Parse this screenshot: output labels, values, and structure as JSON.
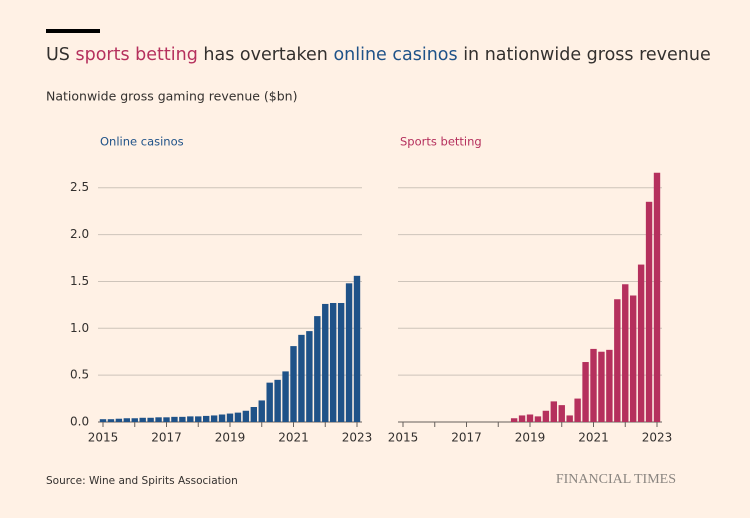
{
  "header": {
    "title_parts": [
      {
        "text": "US "
      },
      {
        "text": "sports betting",
        "color": "#b5305d"
      },
      {
        "text": " has overtaken "
      },
      {
        "text": "online casinos",
        "color": "#1f5288"
      },
      {
        "text": " in nationwide gross revenue"
      }
    ],
    "subtitle": "Nationwide gross gaming revenue ($bn)"
  },
  "footer": {
    "source": "Source: Wine and Spirits Association",
    "brand": "FINANCIAL TIMES"
  },
  "chart_data": [
    {
      "type": "bar",
      "title": "Online casinos",
      "color": "#1f5288",
      "categories": [
        "2015",
        null,
        null,
        null,
        null,
        null,
        null,
        null,
        "2017",
        null,
        null,
        null,
        null,
        null,
        null,
        null,
        "2019",
        null,
        null,
        null,
        null,
        null,
        null,
        null,
        "2021",
        null,
        null,
        null,
        null,
        null,
        null,
        null,
        "2023"
      ],
      "values": [
        0.03,
        0.03,
        0.035,
        0.04,
        0.04,
        0.045,
        0.045,
        0.05,
        0.05,
        0.055,
        0.055,
        0.06,
        0.06,
        0.065,
        0.07,
        0.08,
        0.09,
        0.1,
        0.12,
        0.16,
        0.23,
        0.42,
        0.45,
        0.54,
        0.81,
        0.93,
        0.97,
        1.13,
        1.26,
        1.27,
        1.27,
        1.48,
        1.56
      ],
      "ylim": [
        0,
        2.7
      ],
      "yticks": [
        {
          "value": 0,
          "label": "0.0"
        },
        0.5,
        {
          "value": 1,
          "label": "1.0"
        },
        1.5,
        {
          "value": 2,
          "label": "2.0"
        },
        2.5
      ],
      "grid": true
    },
    {
      "type": "bar",
      "title": "Sports betting",
      "color": "#b5305d",
      "categories": [
        "2015",
        null,
        null,
        null,
        null,
        null,
        null,
        null,
        "2017",
        null,
        null,
        null,
        null,
        null,
        null,
        null,
        "2019",
        null,
        null,
        null,
        null,
        null,
        null,
        null,
        "2021",
        null,
        null,
        null,
        null,
        null,
        null,
        null,
        "2023"
      ],
      "values": [
        null,
        null,
        null,
        null,
        null,
        null,
        null,
        null,
        null,
        null,
        null,
        null,
        null,
        null,
        0.04,
        0.07,
        0.08,
        0.06,
        0.12,
        0.22,
        0.18,
        0.07,
        0.25,
        0.64,
        0.78,
        0.75,
        0.77,
        1.31,
        1.47,
        1.35,
        1.68,
        2.35,
        2.66
      ],
      "ylim": [
        0,
        2.7
      ],
      "yticks": [
        0,
        0.5,
        1,
        1.5,
        2,
        2.5
      ],
      "grid": true
    }
  ]
}
